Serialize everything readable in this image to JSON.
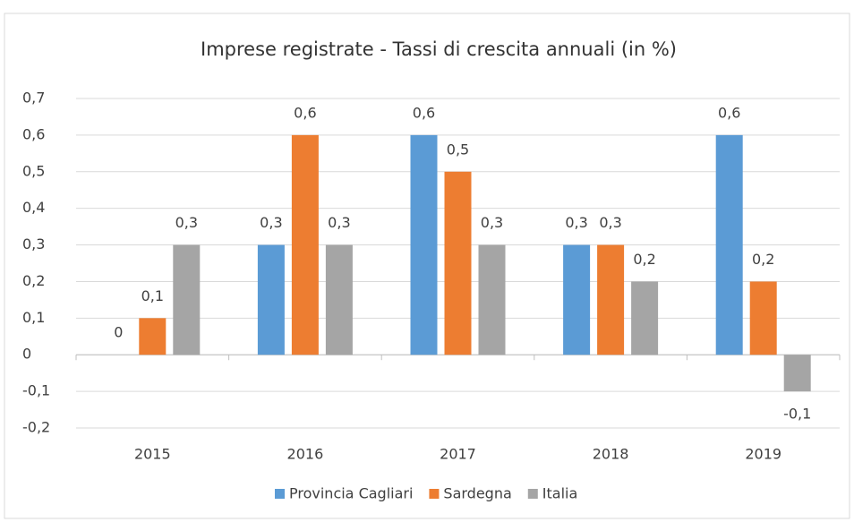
{
  "chart_data": {
    "type": "bar",
    "title": "Imprese registrate - Tassi di crescita annuali (in %)",
    "categories": [
      "2015",
      "2016",
      "2017",
      "2018",
      "2019"
    ],
    "series": [
      {
        "name": "Provincia Cagliari",
        "color": "#5b9bd5",
        "values": [
          0,
          0.3,
          0.6,
          0.3,
          0.6
        ],
        "value_labels": [
          "0",
          "0,3",
          "0,6",
          "0,3",
          "0,6"
        ]
      },
      {
        "name": "Sardegna",
        "color": "#ed7d31",
        "values": [
          0.1,
          0.6,
          0.5,
          0.3,
          0.2
        ],
        "value_labels": [
          "0,1",
          "0,6",
          "0,5",
          "0,3",
          "0,2"
        ]
      },
      {
        "name": "Italia",
        "color": "#a5a5a5",
        "values": [
          0.3,
          0.3,
          0.3,
          0.2,
          -0.1
        ],
        "value_labels": [
          "0,3",
          "0,3",
          "0,3",
          "0,2",
          "-0,1"
        ]
      }
    ],
    "ylim": [
      -0.2,
      0.7
    ],
    "yticks": [
      {
        "value": -0.2,
        "label": "-0,2"
      },
      {
        "value": -0.1,
        "label": "-0,1"
      },
      0,
      {
        "value": 0.1,
        "label": "0,1"
      },
      {
        "value": 0.2,
        "label": "0,2"
      },
      {
        "value": 0.3,
        "label": "0,3"
      },
      {
        "value": 0.4,
        "label": "0,4"
      },
      {
        "value": 0.5,
        "label": "0,5"
      },
      {
        "value": 0.6,
        "label": "0,6"
      },
      {
        "value": 0.7,
        "label": "0,7"
      }
    ],
    "grid": true,
    "legend": "bottom"
  }
}
